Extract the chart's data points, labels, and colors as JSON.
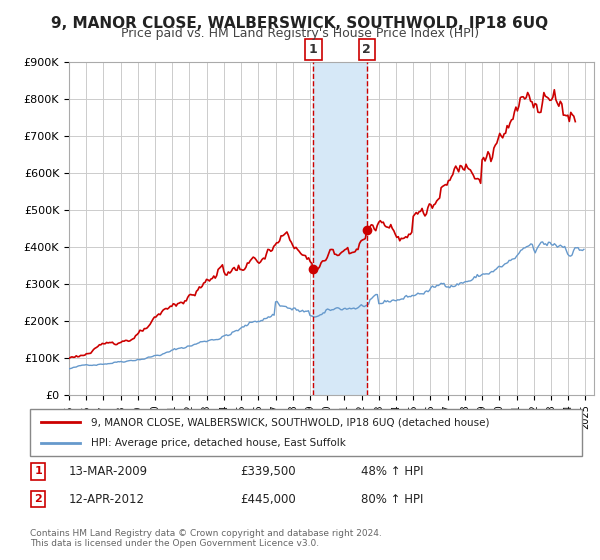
{
  "title": "9, MANOR CLOSE, WALBERSWICK, SOUTHWOLD, IP18 6UQ",
  "subtitle": "Price paid vs. HM Land Registry's House Price Index (HPI)",
  "title_fontsize": 11,
  "subtitle_fontsize": 9,
  "legend_line1": "9, MANOR CLOSE, WALBERSWICK, SOUTHWOLD, IP18 6UQ (detached house)",
  "legend_line2": "HPI: Average price, detached house, East Suffolk",
  "footer1": "Contains HM Land Registry data © Crown copyright and database right 2024.",
  "footer2": "This data is licensed under the Open Government Licence v3.0.",
  "sale1_date": "13-MAR-2009",
  "sale1_price": "£339,500",
  "sale1_hpi": "48% ↑ HPI",
  "sale1_x": 2009.2,
  "sale1_y": 339500,
  "sale2_date": "12-APR-2012",
  "sale2_price": "£445,000",
  "sale2_hpi": "80% ↑ HPI",
  "sale2_x": 2012.3,
  "sale2_y": 445000,
  "vline1_x": 2009.2,
  "vline2_x": 2012.3,
  "shade_color": "#d6e8f7",
  "vline_color": "#cc0000",
  "dot_color": "#cc0000",
  "red_line_color": "#cc0000",
  "blue_line_color": "#6699cc",
  "ylim": [
    0,
    900000
  ],
  "xlim": [
    1995,
    2025.5
  ],
  "background_color": "#ffffff",
  "grid_color": "#cccccc",
  "ytick_labels": [
    "£0",
    "£100K",
    "£200K",
    "£300K",
    "£400K",
    "£500K",
    "£600K",
    "£700K",
    "£800K",
    "£900K"
  ],
  "ytick_values": [
    0,
    100000,
    200000,
    300000,
    400000,
    500000,
    600000,
    700000,
    800000,
    900000
  ]
}
